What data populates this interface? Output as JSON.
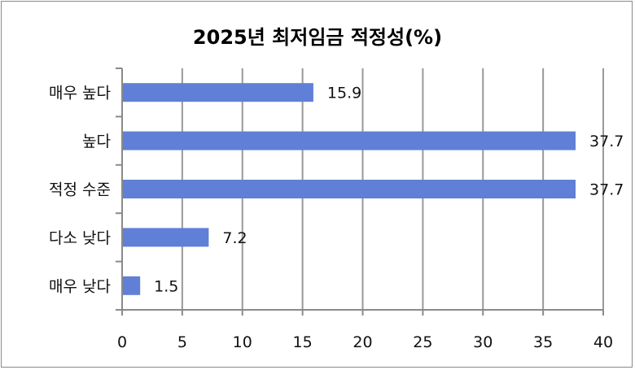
{
  "chart_data": {
    "type": "bar",
    "orientation": "horizontal",
    "title": "2025년 최저임금 적정성(%)",
    "categories": [
      "매우 높다",
      "높다",
      "적정 수준",
      "다소 낮다",
      "매우 낮다"
    ],
    "values": [
      15.9,
      37.7,
      37.7,
      7.2,
      1.5
    ],
    "data_labels": [
      "15.9",
      "37.7",
      "37.7",
      "7.2",
      "1.5"
    ],
    "xlabel": "",
    "ylabel": "",
    "xlim": [
      0,
      40
    ],
    "x_ticks": [
      "0",
      "5",
      "10",
      "15",
      "20",
      "25",
      "30",
      "35",
      "40"
    ],
    "grid": "vertical",
    "legend": "none",
    "colors": {
      "bar": "#5f80d6",
      "grid": "#999999",
      "axis": "#8a8a8a"
    }
  }
}
